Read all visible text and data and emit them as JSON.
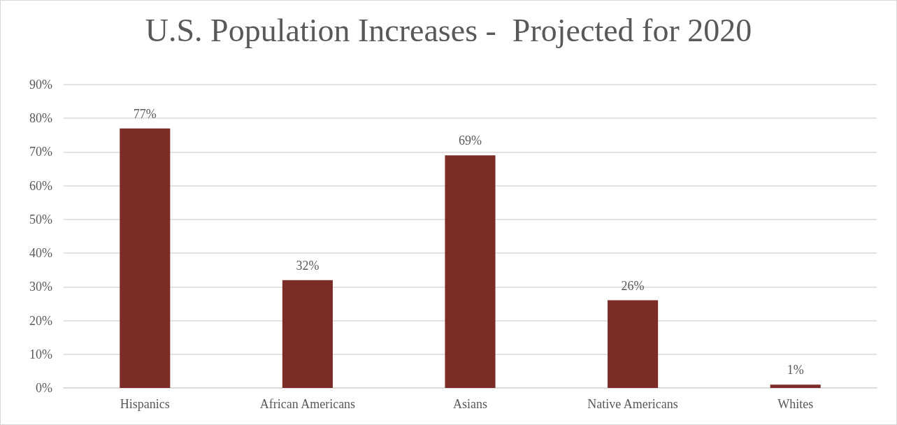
{
  "chart_data": {
    "type": "bar",
    "title": "U.S. Population Increases -  Projected for 2020",
    "categories": [
      "Hispanics",
      "African Americans",
      "Asians",
      "Native Americans",
      "Whites"
    ],
    "values": [
      77,
      32,
      69,
      26,
      1
    ],
    "color": "#7b2c27",
    "value_labels": [
      "77%",
      "32%",
      "69%",
      "26%",
      "1%"
    ],
    "ylim": [
      0,
      90
    ],
    "yticks": [
      {
        "value": 0,
        "label": "0%"
      },
      {
        "value": 10,
        "label": "10%"
      },
      {
        "value": 20,
        "label": "20%"
      },
      {
        "value": 30,
        "label": "30%"
      },
      {
        "value": 40,
        "label": "40%"
      },
      {
        "value": 50,
        "label": "50%"
      },
      {
        "value": 60,
        "label": "60%"
      },
      {
        "value": 70,
        "label": "70%"
      },
      {
        "value": 80,
        "label": "80%"
      },
      {
        "value": 90,
        "label": "90%"
      }
    ],
    "grid": "y"
  }
}
